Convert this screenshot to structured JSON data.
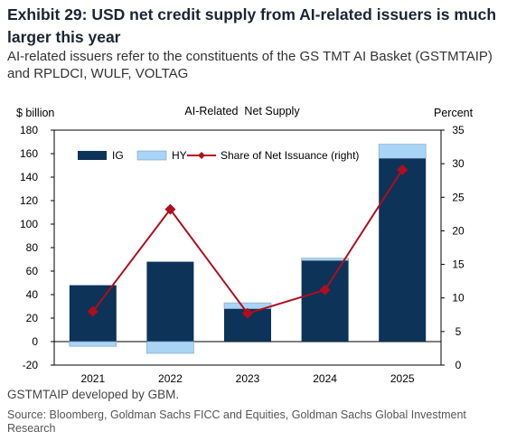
{
  "header": {
    "title": "Exhibit 29: USD net credit supply from AI-related issuers is much larger this year",
    "subtitle": "AI-related issuers refer to the constituents of the GS TMT AI Basket (GSTMTAIP) and RPLDCI, WULF, VOLTAG"
  },
  "footer": {
    "note": "GSTMTAIP developed by GBM.",
    "source": "Source: Bloomberg, Goldman Sachs FICC and Equities, Goldman Sachs Global Investment Research"
  },
  "colors": {
    "ig": "#0d3358",
    "hy": "#a9d4f5",
    "share": "#b00d1f"
  },
  "chart_data": {
    "type": "bar",
    "title": "AI-Related  Net Supply",
    "ylabel": "$ billion",
    "y2label": "Percent",
    "categories": [
      "2021",
      "2022",
      "2023",
      "2024",
      "2025"
    ],
    "ylim": [
      -20,
      180
    ],
    "yticks": [
      -20,
      0,
      20,
      40,
      60,
      80,
      100,
      120,
      140,
      160,
      180
    ],
    "y2lim": [
      0,
      35
    ],
    "y2ticks": [
      0,
      5,
      10,
      15,
      20,
      25,
      30,
      35
    ],
    "legend_position": "top-left",
    "series": [
      {
        "name": "IG",
        "kind": "bar",
        "stack": "supply",
        "values": [
          48,
          68,
          28,
          69,
          156
        ]
      },
      {
        "name": "HY",
        "kind": "bar",
        "stack": "supply",
        "values": [
          -4,
          -10,
          5,
          2,
          12
        ]
      },
      {
        "name": "Share of Net Issuance (right)",
        "kind": "line",
        "axis": "right",
        "values": [
          8.0,
          23.2,
          7.7,
          11.2,
          29.1
        ]
      }
    ]
  }
}
